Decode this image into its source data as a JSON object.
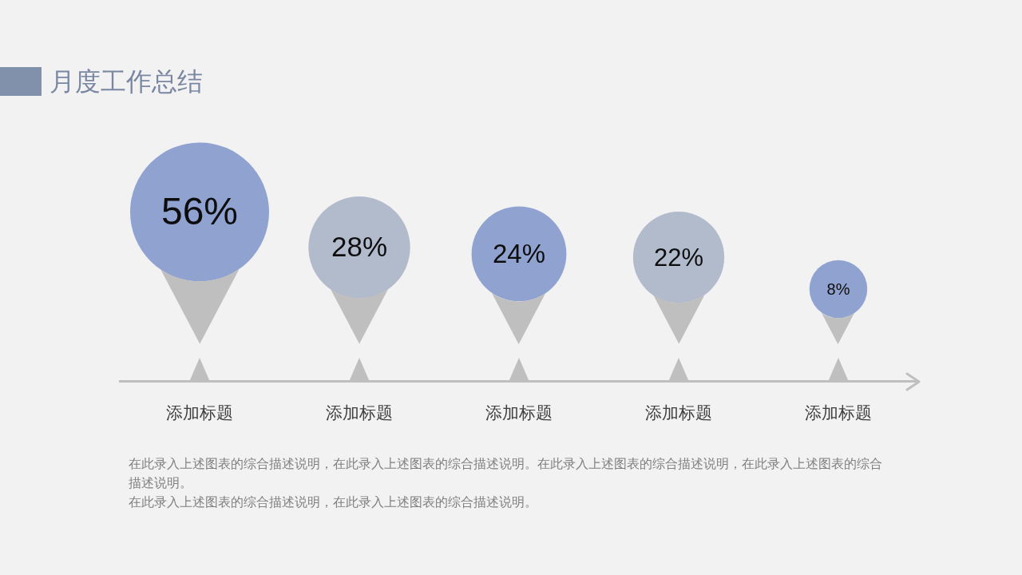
{
  "chart_data": {
    "type": "other",
    "title": "月度工作总结",
    "categories": [
      "添加标题",
      "添加标题",
      "添加标题",
      "添加标题",
      "添加标题"
    ],
    "values": [
      56,
      28,
      24,
      22,
      8
    ],
    "value_labels": [
      "56%",
      "28%",
      "24%",
      "22%",
      "8%"
    ],
    "colors": [
      "#8fa2d0",
      "#b2bbcb",
      "#8fa2d0",
      "#b2bbcb",
      "#8fa2d0"
    ],
    "annotations": [
      "在此录入上述图表的综合描述说明，在此录入上述图表的综合描述说明。在此录入上述图表的综合描述说明，在此录入上述图表的综合描述说明。",
      "在此录入上述图表的综合描述说明，在此录入上述图表的综合描述说明。"
    ]
  }
}
